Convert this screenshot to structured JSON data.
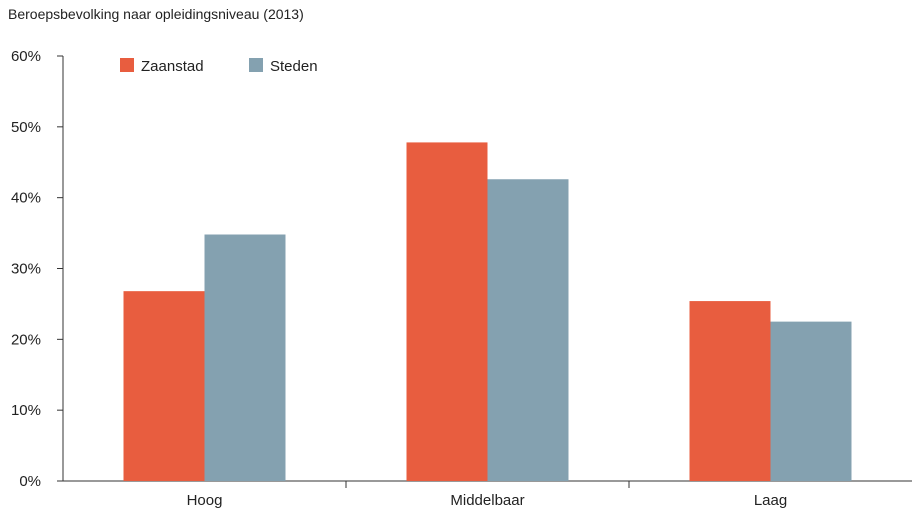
{
  "chart_data": {
    "type": "bar",
    "title": "Beroepsbevolking naar opleidingsniveau (2013)",
    "xlabel": "",
    "ylabel": "",
    "categories": [
      "Hoog",
      "Middelbaar",
      "Laag"
    ],
    "series": [
      {
        "name": "Zaanstad",
        "color": "#e85d3f",
        "values": [
          26.8,
          47.8,
          25.4
        ]
      },
      {
        "name": "Steden",
        "color": "#84a1b0",
        "values": [
          34.8,
          42.6,
          22.5
        ]
      }
    ],
    "ylim": [
      0,
      60
    ],
    "yticks": [
      0,
      10,
      20,
      30,
      40,
      50,
      60
    ],
    "ytick_labels": [
      "0%",
      "10%",
      "20%",
      "30%",
      "40%",
      "50%",
      "60%"
    ],
    "grid": false,
    "legend_position": "top-left"
  }
}
